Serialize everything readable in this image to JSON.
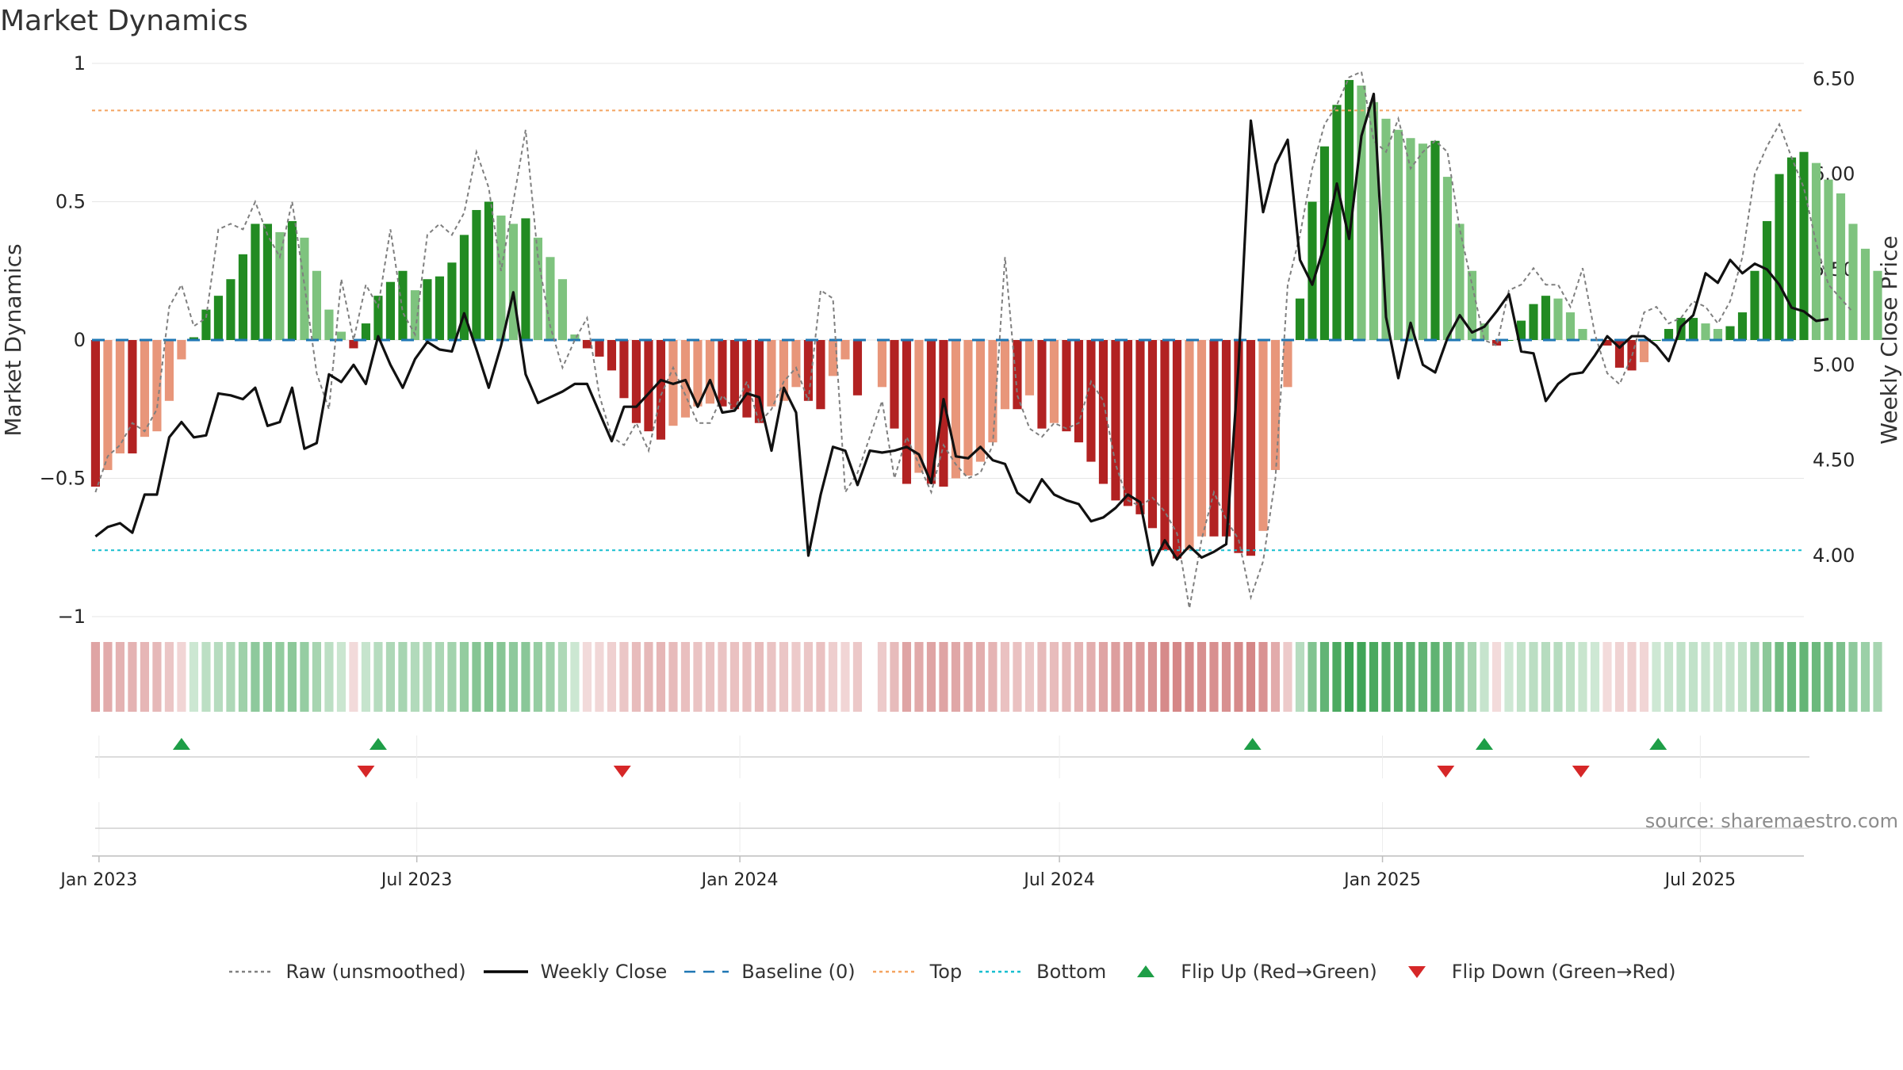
{
  "title": "Market Dynamics",
  "source": "source: sharemaestro.com",
  "legend": [
    {
      "key": "raw",
      "label": "Raw (unsmoothed)",
      "color": "#808080",
      "style": "dotted"
    },
    {
      "key": "close",
      "label": "Weekly Close",
      "color": "#000000",
      "style": "solid"
    },
    {
      "key": "baseline",
      "label": "Baseline (0)",
      "color": "#1f77b4",
      "style": "dashed"
    },
    {
      "key": "top",
      "label": "Top",
      "color": "#f4a460",
      "style": "dotted"
    },
    {
      "key": "bottom",
      "label": "Bottom",
      "color": "#17becf",
      "style": "dotted"
    },
    {
      "key": "flipup",
      "label": "Flip Up (Red→Green)",
      "color": "#1e9e47",
      "style": "triangle-up"
    },
    {
      "key": "flipdown",
      "label": "Flip Down (Green→Red)",
      "color": "#d62728",
      "style": "triangle-down"
    }
  ],
  "chart_data": {
    "type": "bar",
    "ylabel_left": "Market Dynamics",
    "ylabel_right": "Weekly Close Price",
    "ylim_left": [
      -1,
      1
    ],
    "yticks_left": [
      -1,
      -0.5,
      0,
      0.5,
      1
    ],
    "ytick_labels_left": [
      "−1",
      "−0.5",
      "0",
      "0.5",
      "1"
    ],
    "ylim_right": [
      3.68,
      6.58
    ],
    "yticks_right": [
      4.0,
      4.5,
      5.0,
      5.5,
      6.0,
      6.5
    ],
    "ytick_labels_right": [
      "4.00",
      "4.50",
      "5.00",
      "5.50",
      "6.00",
      "6.50"
    ],
    "x_start": "2022-12-28",
    "x_end": "2025-08-29",
    "xticks": [
      "2023-01-01",
      "2023-07-01",
      "2024-01-01",
      "2024-07-01",
      "2025-01-01",
      "2025-07-01"
    ],
    "xtick_labels": [
      "Jan 2023",
      "Jul 2023",
      "Jan 2024",
      "Jul 2024",
      "Jan 2025",
      "Jul 2025"
    ],
    "first_week": "2022-12-30",
    "top_level": 0.83,
    "bottom_level": -0.76,
    "baseline": 0,
    "grid": true,
    "legend_position": "bottom-center",
    "series": [
      {
        "name": "Market Dynamics",
        "values": [
          -0.53,
          -0.47,
          -0.41,
          -0.41,
          -0.35,
          -0.33,
          -0.22,
          -0.07,
          0.01,
          0.11,
          0.16,
          0.22,
          0.31,
          0.42,
          0.42,
          0.39,
          0.43,
          0.37,
          0.25,
          0.11,
          0.03,
          -0.03,
          0.06,
          0.16,
          0.21,
          0.25,
          0.18,
          0.22,
          0.23,
          0.28,
          0.38,
          0.47,
          0.5,
          0.45,
          0.42,
          0.44,
          0.37,
          0.3,
          0.22,
          0.02,
          -0.03,
          -0.06,
          -0.11,
          -0.21,
          -0.3,
          -0.33,
          -0.36,
          -0.31,
          -0.28,
          -0.24,
          -0.23,
          -0.24,
          -0.25,
          -0.28,
          -0.3,
          -0.24,
          -0.22,
          -0.17,
          -0.22,
          -0.25,
          -0.13,
          -0.07,
          -0.2,
          null,
          -0.17,
          -0.32,
          -0.52,
          -0.48,
          -0.52,
          -0.53,
          -0.5,
          -0.49,
          -0.44,
          -0.37,
          -0.25,
          -0.25,
          -0.2,
          -0.32,
          -0.3,
          -0.33,
          -0.37,
          -0.44,
          -0.52,
          -0.58,
          -0.6,
          -0.63,
          -0.68,
          -0.76,
          -0.79,
          -0.76,
          -0.71,
          -0.71,
          -0.71,
          -0.77,
          -0.78,
          -0.69,
          -0.47,
          -0.17,
          0.15,
          0.5,
          0.7,
          0.85,
          0.94,
          0.92,
          0.86,
          0.8,
          0.76,
          0.73,
          0.71,
          0.72,
          0.59,
          0.42,
          0.25,
          0.06,
          -0.02,
          0.0,
          0.07,
          0.13,
          0.16,
          0.15,
          0.1,
          0.04,
          0.0,
          -0.02,
          -0.1,
          -0.11,
          -0.08,
          0.0,
          0.04,
          0.08,
          0.08,
          0.06,
          0.04,
          0.05,
          0.1,
          0.25,
          0.43,
          0.6,
          0.66,
          0.68,
          0.64,
          0.58,
          0.53,
          0.42,
          0.33,
          0.25
        ],
        "colors_by_state": {
          "strong_up": "#228b22",
          "weak_up": "#7ec37e",
          "strong_down": "#b22222",
          "weak_down": "#e8967a"
        }
      },
      {
        "name": "Raw (unsmoothed)",
        "values": [
          -0.55,
          -0.42,
          -0.38,
          -0.3,
          -0.33,
          -0.25,
          0.12,
          0.2,
          0.05,
          0.08,
          0.4,
          0.42,
          0.4,
          0.5,
          0.38,
          0.3,
          0.5,
          0.2,
          -0.12,
          -0.25,
          0.22,
          0.0,
          0.2,
          0.12,
          0.4,
          0.1,
          0.02,
          0.38,
          0.42,
          0.38,
          0.46,
          0.68,
          0.55,
          0.25,
          0.5,
          0.76,
          0.3,
          0.05,
          -0.1,
          0.0,
          0.08,
          -0.2,
          -0.35,
          -0.38,
          -0.3,
          -0.4,
          -0.2,
          -0.1,
          -0.2,
          -0.3,
          -0.3,
          -0.2,
          -0.25,
          -0.15,
          -0.3,
          -0.25,
          -0.15,
          -0.1,
          -0.22,
          0.18,
          0.15,
          -0.55,
          -0.48,
          -0.35,
          -0.22,
          -0.5,
          -0.35,
          -0.45,
          -0.55,
          -0.38,
          -0.45,
          -0.5,
          -0.48,
          -0.38,
          0.3,
          -0.2,
          -0.32,
          -0.35,
          -0.3,
          -0.32,
          -0.3,
          -0.15,
          -0.22,
          -0.45,
          -0.58,
          -0.6,
          -0.57,
          -0.62,
          -0.7,
          -0.97,
          -0.72,
          -0.55,
          -0.65,
          -0.72,
          -0.93,
          -0.8,
          -0.5,
          0.2,
          0.38,
          0.62,
          0.78,
          0.85,
          0.95,
          0.97,
          0.72,
          0.68,
          0.8,
          0.62,
          0.68,
          0.72,
          0.68,
          0.4,
          0.2,
          0.0,
          -0.02,
          0.18,
          0.2,
          0.26,
          0.2,
          0.2,
          0.12,
          0.26,
          0.02,
          -0.12,
          -0.16,
          -0.06,
          0.1,
          0.12,
          0.06,
          0.08,
          0.14,
          0.12,
          0.06,
          0.14,
          0.3,
          0.6,
          0.7,
          0.78,
          0.66,
          0.55,
          0.35,
          0.2,
          0.15,
          0.1
        ]
      },
      {
        "name": "Weekly Close",
        "values": [
          4.1,
          4.15,
          4.17,
          4.12,
          4.32,
          4.32,
          4.62,
          4.7,
          4.62,
          4.63,
          4.85,
          4.84,
          4.82,
          4.88,
          4.68,
          4.7,
          4.88,
          4.56,
          4.59,
          4.95,
          4.91,
          5.0,
          4.9,
          5.15,
          5.0,
          4.88,
          5.03,
          5.12,
          5.08,
          5.07,
          5.27,
          5.08,
          4.88,
          5.1,
          5.38,
          4.95,
          4.8,
          4.83,
          4.86,
          4.9,
          4.9,
          4.75,
          4.6,
          4.78,
          4.78,
          4.85,
          4.92,
          4.9,
          4.92,
          4.78,
          4.92,
          4.75,
          4.76,
          4.85,
          4.83,
          4.55,
          4.88,
          4.75,
          4.0,
          4.32,
          4.57,
          4.55,
          4.37,
          4.55,
          4.54,
          4.55,
          4.57,
          4.53,
          4.38,
          4.82,
          4.52,
          4.51,
          4.57,
          4.5,
          4.48,
          4.33,
          4.28,
          4.4,
          4.32,
          4.29,
          4.27,
          4.18,
          4.2,
          4.25,
          4.32,
          4.28,
          3.95,
          4.08,
          3.98,
          4.05,
          3.99,
          4.02,
          4.06,
          5.0,
          6.28,
          5.8,
          6.05,
          6.18,
          5.55,
          5.42,
          5.63,
          5.95,
          5.66,
          6.2,
          6.42,
          5.25,
          4.93,
          5.22,
          5.0,
          4.96,
          5.14,
          5.26,
          5.17,
          5.2,
          5.28,
          5.37,
          5.07,
          5.06,
          4.81,
          4.9,
          4.95,
          4.96,
          5.05,
          5.15,
          5.09,
          5.15,
          5.15,
          5.1,
          5.02,
          5.2,
          5.26,
          5.48,
          5.43,
          5.55,
          5.48,
          5.53,
          5.5,
          5.42,
          5.3,
          5.28,
          5.23,
          5.24
        ]
      }
    ],
    "state_strip": {
      "description_values": [
        -0.53,
        -0.47,
        -0.41,
        -0.41,
        -0.35,
        -0.33,
        -0.22,
        -0.07,
        0.01,
        0.11,
        0.16,
        0.22,
        0.31,
        0.42,
        0.42,
        0.39,
        0.43,
        0.37,
        0.25,
        0.11,
        0.03,
        -0.03,
        0.06,
        0.16,
        0.21,
        0.25,
        0.18,
        0.22,
        0.23,
        0.28,
        0.38,
        0.47,
        0.5,
        0.45,
        0.42,
        0.44,
        0.37,
        0.3,
        0.22,
        0.02,
        -0.03,
        -0.06,
        -0.11,
        -0.21,
        -0.3,
        -0.33,
        -0.36,
        -0.31,
        -0.28,
        -0.24,
        -0.23,
        -0.24,
        -0.25,
        -0.28,
        -0.3,
        -0.24,
        -0.22,
        -0.17,
        -0.22,
        -0.25,
        -0.13,
        -0.07,
        -0.2,
        null,
        -0.17,
        -0.32,
        -0.52,
        -0.48,
        -0.52,
        -0.53,
        -0.5,
        -0.49,
        -0.44,
        -0.37,
        -0.25,
        -0.25,
        -0.2,
        -0.32,
        -0.3,
        -0.33,
        -0.37,
        -0.44,
        -0.52,
        -0.58,
        -0.6,
        -0.63,
        -0.68,
        -0.76,
        -0.79,
        -0.76,
        -0.71,
        -0.71,
        -0.71,
        -0.77,
        -0.78,
        -0.69,
        -0.47,
        -0.17,
        0.15,
        0.5,
        0.7,
        0.85,
        0.94,
        0.92,
        0.86,
        0.8,
        0.76,
        0.73,
        0.71,
        0.72,
        0.59,
        0.42,
        0.25,
        0.06,
        -0.02,
        0.0,
        0.07,
        0.13,
        0.16,
        0.15,
        0.1,
        0.04,
        0.0,
        -0.02,
        -0.1,
        -0.11,
        -0.08,
        0.0,
        0.04,
        0.08,
        0.08,
        0.06,
        0.04,
        0.05,
        0.1,
        0.25,
        0.43,
        0.6,
        0.66,
        0.68,
        0.64,
        0.58,
        0.53,
        0.42,
        0.33,
        0.25
      ]
    },
    "flip_up_dates": [
      "2023-02-17",
      "2023-06-09",
      "2024-10-19",
      "2025-02-28",
      "2025-06-07"
    ],
    "flip_down_dates": [
      "2023-06-02",
      "2023-10-26",
      "2025-02-06",
      "2025-04-24"
    ]
  }
}
